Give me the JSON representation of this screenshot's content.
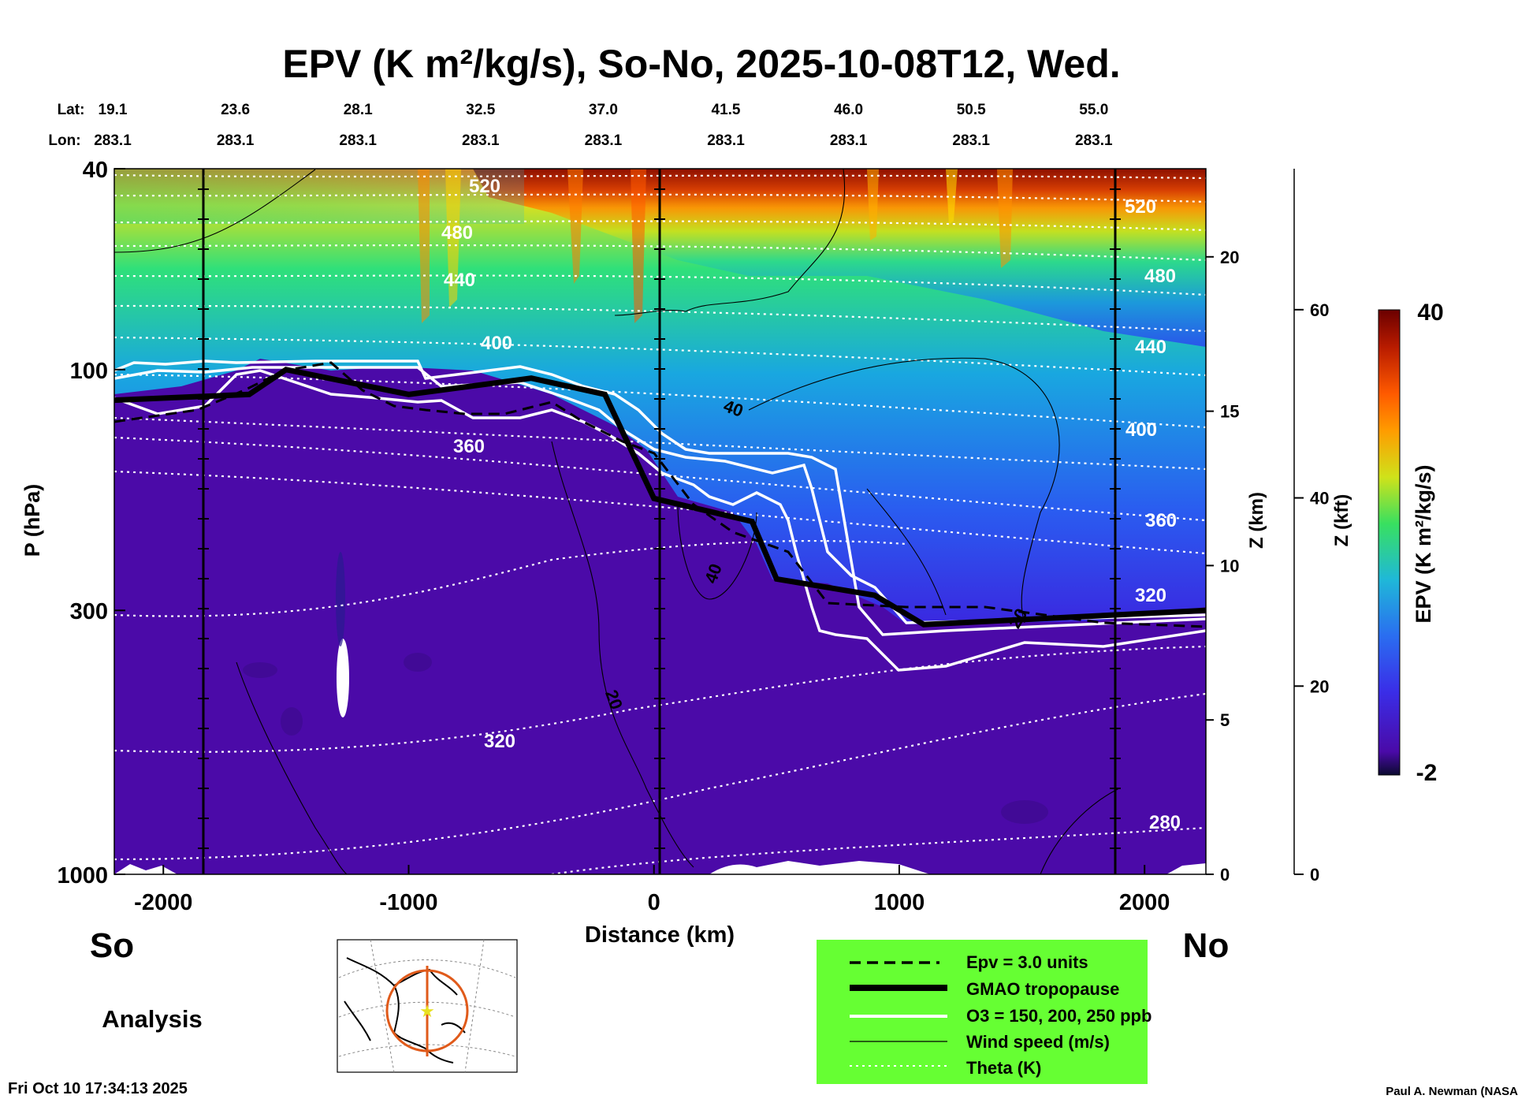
{
  "chart_data": {
    "type": "heatmap",
    "title": "EPV (K m²/kg/s), So-No, 2025-10-08T12, Wed.",
    "xlabel": "Distance (km)",
    "ylabel": "P (hPa)",
    "z_label": "Z (km)",
    "zft_label": "Z (kft)",
    "colorbar_label": "EPV (K m²/kg/s)",
    "colorbar_range": [
      -2,
      40
    ],
    "xlim": [
      -2200,
      2250
    ],
    "ylim": [
      1000,
      40
    ],
    "y_scale": "log",
    "x_ticks": [
      -2000,
      -1000,
      0,
      1000,
      2000
    ],
    "y_ticks": [
      40,
      100,
      300,
      1000
    ],
    "z_ticks": [
      0,
      5,
      10,
      15,
      20
    ],
    "zft_ticks": [
      0,
      20,
      40,
      60
    ],
    "lat_label": "Lat:",
    "lon_label": "Lon:",
    "lat_values": [
      "19.1",
      "23.6",
      "28.1",
      "32.5",
      "37.0",
      "41.5",
      "46.0",
      "50.5",
      "55.0"
    ],
    "lon_values": [
      "283.1",
      "283.1",
      "283.1",
      "283.1",
      "283.1",
      "283.1",
      "283.1",
      "283.1",
      "283.1"
    ],
    "theta_labels_left": [
      "520",
      "480",
      "440",
      "400",
      "360",
      "320"
    ],
    "theta_labels_right": [
      "520",
      "480",
      "440",
      "400",
      "360",
      "320",
      "280"
    ],
    "wind_labels": [
      "20",
      "40",
      "20",
      "20"
    ],
    "south_label": "So",
    "north_label": "No",
    "analysis_label": "Analysis",
    "legend": [
      {
        "style": "dashed",
        "label": "Epv = 3.0 units"
      },
      {
        "style": "thick",
        "label": "GMAO tropopause"
      },
      {
        "style": "white",
        "label": "O3 = 150, 200, 250 ppb"
      },
      {
        "style": "thin",
        "label": "Wind speed (m/s)"
      },
      {
        "style": "dotted",
        "label": "Theta (K)"
      }
    ],
    "tropopause_hPa": [
      {
        "x": -2200,
        "p": 115
      },
      {
        "x": -1650,
        "p": 112
      },
      {
        "x": -1500,
        "p": 100
      },
      {
        "x": -1000,
        "p": 112
      },
      {
        "x": -500,
        "p": 104
      },
      {
        "x": -200,
        "p": 112
      },
      {
        "x": 0,
        "p": 180
      },
      {
        "x": 400,
        "p": 200
      },
      {
        "x": 500,
        "p": 260
      },
      {
        "x": 900,
        "p": 280
      },
      {
        "x": 1100,
        "p": 320
      },
      {
        "x": 2250,
        "p": 300
      }
    ],
    "colors": {
      "legend_bg": "#66ff33",
      "background_field": "#4b0aa8",
      "map_ring": "#e05a1a"
    }
  },
  "footer": {
    "timestamp": "Fri Oct 10 17:34:13 2025",
    "credit": "Paul A. Newman (NASA"
  }
}
